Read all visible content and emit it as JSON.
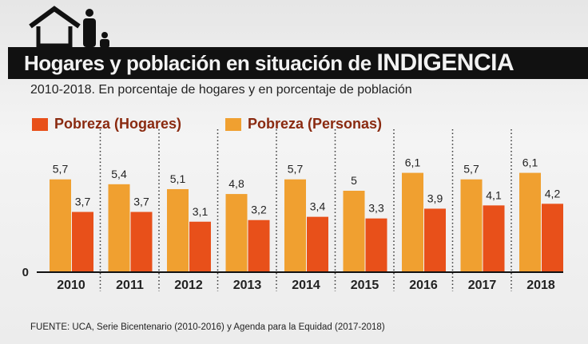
{
  "header": {
    "title": "Hogares y población en situación de",
    "title_emphasis": "INDIGENCIA",
    "subtitle": "2010-2018. En porcentaje de hogares y en porcentaje de población",
    "icon": "house-family-icon"
  },
  "footer": {
    "source": "FUENTE: UCA, Serie Bicentenario (2010-2016) y Agenda para la Equidad (2017-2018)"
  },
  "chart_data": {
    "type": "bar",
    "categories": [
      "2010",
      "2011",
      "2012",
      "2013",
      "2014",
      "2015",
      "2016",
      "2017",
      "2018"
    ],
    "series": [
      {
        "name": "Pobreza (Personas)",
        "color": "#f0a030",
        "values": [
          5.7,
          5.4,
          5.1,
          4.8,
          5.7,
          5,
          6.1,
          5.7,
          6.1
        ],
        "labels": [
          "5,7",
          "5,4",
          "5,1",
          "4,8",
          "5,7",
          "5",
          "6,1",
          "5,7",
          "6,1"
        ]
      },
      {
        "name": "Pobreza (Hogares)",
        "color": "#e8501a",
        "values": [
          3.7,
          3.7,
          3.1,
          3.2,
          3.4,
          3.3,
          3.9,
          4.1,
          4.2
        ],
        "labels": [
          "3,7",
          "3,7",
          "3,1",
          "3,2",
          "3,4",
          "3,3",
          "3,9",
          "4,1",
          "4,2"
        ]
      }
    ],
    "legend_order": [
      "Pobreza (Hogares)",
      "Pobreza (Personas)"
    ],
    "y_tick": "0",
    "ylim": [
      0,
      6.5
    ],
    "legend": "top-left",
    "grid": false
  }
}
